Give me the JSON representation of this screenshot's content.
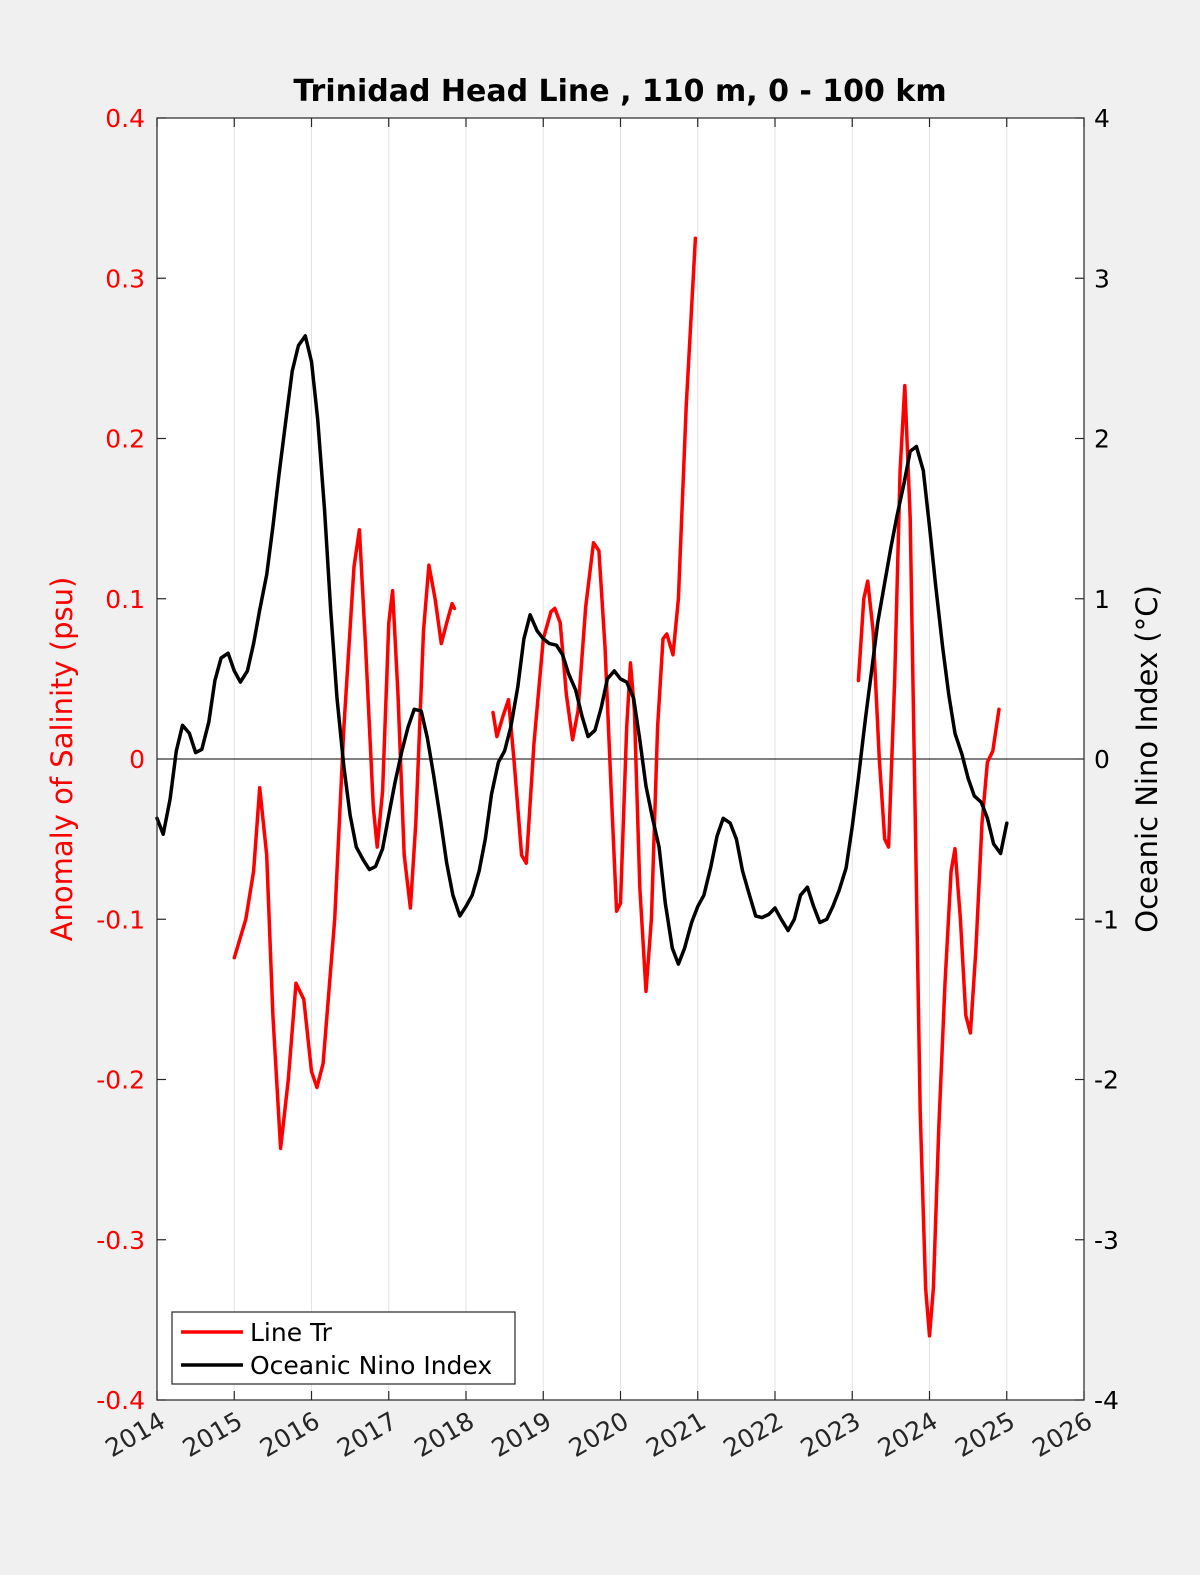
{
  "chart_data": {
    "type": "line",
    "title": "Trinidad Head Line , 110 m, 0 - 100 km",
    "xlabel": "",
    "ylabel_left": "Anomaly of Salinity (psu)",
    "ylabel_right": "Oceanic Nino Index (°C)",
    "xlim": [
      2014,
      2026
    ],
    "ylim_left": [
      -0.4,
      0.4
    ],
    "ylim_right": [
      -4,
      4
    ],
    "x_ticks": [
      "2014",
      "2015",
      "2016",
      "2017",
      "2018",
      "2019",
      "2020",
      "2021",
      "2022",
      "2023",
      "2024",
      "2025",
      "2026"
    ],
    "y_left_ticks": [
      "-0.4",
      "-0.3",
      "-0.2",
      "-0.1",
      "0",
      "0.1",
      "0.2",
      "0.3",
      "0.4"
    ],
    "y_right_ticks": [
      "-4",
      "-3",
      "-2",
      "-1",
      "0",
      "1",
      "2",
      "3",
      "4"
    ],
    "grid": "vertical",
    "legend_position": "bottom-left",
    "colors": {
      "salinity": "#ff0000",
      "oni": "#000000",
      "zero_line": "#000000",
      "grid": "#e3e3e3"
    },
    "series": [
      {
        "name": "Line Tr",
        "axis": "left",
        "segments": [
          [
            [
              2015.0,
              -0.124
            ],
            [
              2015.15,
              -0.1
            ],
            [
              2015.25,
              -0.07
            ],
            [
              2015.33,
              -0.018
            ],
            [
              2015.42,
              -0.06
            ],
            [
              2015.5,
              -0.16
            ],
            [
              2015.6,
              -0.243
            ],
            [
              2015.7,
              -0.2
            ],
            [
              2015.8,
              -0.14
            ],
            [
              2015.9,
              -0.15
            ],
            [
              2016.0,
              -0.195
            ],
            [
              2016.07,
              -0.205
            ],
            [
              2016.15,
              -0.19
            ],
            [
              2016.3,
              -0.1
            ],
            [
              2016.42,
              0.02
            ],
            [
              2016.55,
              0.12
            ],
            [
              2016.62,
              0.143
            ],
            [
              2016.7,
              0.07
            ],
            [
              2016.8,
              -0.03
            ],
            [
              2016.85,
              -0.055
            ],
            [
              2016.92,
              -0.02
            ],
            [
              2017.0,
              0.085
            ],
            [
              2017.05,
              0.105
            ],
            [
              2017.12,
              0.04
            ],
            [
              2017.2,
              -0.06
            ],
            [
              2017.28,
              -0.093
            ],
            [
              2017.35,
              -0.04
            ],
            [
              2017.45,
              0.08
            ],
            [
              2017.52,
              0.121
            ],
            [
              2017.6,
              0.1
            ],
            [
              2017.68,
              0.072
            ],
            [
              2017.75,
              0.085
            ],
            [
              2017.82,
              0.097
            ],
            [
              2017.85,
              0.094
            ]
          ],
          [
            [
              2018.35,
              0.029
            ],
            [
              2018.4,
              0.014
            ],
            [
              2018.48,
              0.027
            ],
            [
              2018.55,
              0.037
            ],
            [
              2018.62,
              0.0
            ],
            [
              2018.72,
              -0.06
            ],
            [
              2018.78,
              -0.065
            ],
            [
              2018.88,
              0.01
            ],
            [
              2019.0,
              0.075
            ],
            [
              2019.1,
              0.092
            ],
            [
              2019.15,
              0.094
            ],
            [
              2019.22,
              0.085
            ],
            [
              2019.3,
              0.04
            ],
            [
              2019.38,
              0.012
            ],
            [
              2019.45,
              0.03
            ],
            [
              2019.55,
              0.095
            ],
            [
              2019.65,
              0.135
            ],
            [
              2019.72,
              0.13
            ],
            [
              2019.8,
              0.07
            ],
            [
              2019.88,
              -0.02
            ],
            [
              2019.95,
              -0.095
            ],
            [
              2020.0,
              -0.09
            ],
            [
              2020.08,
              0.02
            ],
            [
              2020.13,
              0.06
            ],
            [
              2020.18,
              0.03
            ],
            [
              2020.25,
              -0.08
            ],
            [
              2020.33,
              -0.145
            ],
            [
              2020.4,
              -0.1
            ],
            [
              2020.48,
              0.02
            ],
            [
              2020.55,
              0.075
            ],
            [
              2020.6,
              0.078
            ],
            [
              2020.68,
              0.065
            ],
            [
              2020.75,
              0.1
            ],
            [
              2020.85,
              0.22
            ],
            [
              2020.97,
              0.325
            ]
          ],
          [
            [
              2023.08,
              0.049
            ],
            [
              2023.15,
              0.1
            ],
            [
              2023.2,
              0.111
            ],
            [
              2023.27,
              0.08
            ],
            [
              2023.35,
              0.0
            ],
            [
              2023.42,
              -0.05
            ],
            [
              2023.47,
              -0.055
            ],
            [
              2023.55,
              0.05
            ],
            [
              2023.62,
              0.18
            ],
            [
              2023.68,
              0.233
            ],
            [
              2023.75,
              0.15
            ],
            [
              2023.82,
              -0.05
            ],
            [
              2023.88,
              -0.22
            ],
            [
              2023.95,
              -0.33
            ],
            [
              2024.0,
              -0.36
            ],
            [
              2024.05,
              -0.33
            ],
            [
              2024.12,
              -0.23
            ],
            [
              2024.2,
              -0.14
            ],
            [
              2024.28,
              -0.07
            ],
            [
              2024.33,
              -0.056
            ],
            [
              2024.4,
              -0.1
            ],
            [
              2024.47,
              -0.16
            ],
            [
              2024.53,
              -0.171
            ],
            [
              2024.6,
              -0.12
            ],
            [
              2024.68,
              -0.04
            ],
            [
              2024.75,
              -0.002
            ],
            [
              2024.82,
              0.005
            ],
            [
              2024.9,
              0.031
            ]
          ]
        ]
      },
      {
        "name": "Oceanic Nino Index",
        "axis": "right",
        "segments": [
          [
            [
              2014.0,
              -0.37
            ],
            [
              2014.08,
              -0.47
            ],
            [
              2014.17,
              -0.25
            ],
            [
              2014.25,
              0.05
            ],
            [
              2014.33,
              0.21
            ],
            [
              2014.42,
              0.16
            ],
            [
              2014.5,
              0.04
            ],
            [
              2014.58,
              0.06
            ],
            [
              2014.67,
              0.23
            ],
            [
              2014.75,
              0.49
            ],
            [
              2014.83,
              0.63
            ],
            [
              2014.92,
              0.66
            ],
            [
              2015.0,
              0.55
            ],
            [
              2015.08,
              0.48
            ],
            [
              2015.17,
              0.55
            ],
            [
              2015.25,
              0.72
            ],
            [
              2015.33,
              0.93
            ],
            [
              2015.42,
              1.15
            ],
            [
              2015.5,
              1.45
            ],
            [
              2015.58,
              1.78
            ],
            [
              2015.67,
              2.12
            ],
            [
              2015.75,
              2.42
            ],
            [
              2015.83,
              2.58
            ],
            [
              2015.92,
              2.64
            ],
            [
              2016.0,
              2.48
            ],
            [
              2016.08,
              2.12
            ],
            [
              2016.17,
              1.55
            ],
            [
              2016.25,
              0.92
            ],
            [
              2016.33,
              0.38
            ],
            [
              2016.42,
              -0.05
            ],
            [
              2016.5,
              -0.35
            ],
            [
              2016.58,
              -0.55
            ],
            [
              2016.67,
              -0.63
            ],
            [
              2016.75,
              -0.69
            ],
            [
              2016.83,
              -0.67
            ],
            [
              2016.92,
              -0.56
            ],
            [
              2017.0,
              -0.35
            ],
            [
              2017.08,
              -0.15
            ],
            [
              2017.17,
              0.05
            ],
            [
              2017.25,
              0.2
            ],
            [
              2017.33,
              0.31
            ],
            [
              2017.42,
              0.3
            ],
            [
              2017.5,
              0.13
            ],
            [
              2017.58,
              -0.1
            ],
            [
              2017.67,
              -0.38
            ],
            [
              2017.75,
              -0.65
            ],
            [
              2017.83,
              -0.85
            ],
            [
              2017.92,
              -0.98
            ],
            [
              2018.0,
              -0.92
            ],
            [
              2018.08,
              -0.85
            ],
            [
              2018.17,
              -0.7
            ],
            [
              2018.25,
              -0.5
            ],
            [
              2018.33,
              -0.22
            ],
            [
              2018.42,
              -0.02
            ],
            [
              2018.5,
              0.05
            ],
            [
              2018.58,
              0.2
            ],
            [
              2018.67,
              0.45
            ],
            [
              2018.75,
              0.75
            ],
            [
              2018.83,
              0.9
            ],
            [
              2018.92,
              0.8
            ],
            [
              2019.0,
              0.75
            ],
            [
              2019.08,
              0.72
            ],
            [
              2019.17,
              0.71
            ],
            [
              2019.25,
              0.65
            ],
            [
              2019.33,
              0.53
            ],
            [
              2019.42,
              0.43
            ],
            [
              2019.5,
              0.27
            ],
            [
              2019.58,
              0.14
            ],
            [
              2019.67,
              0.18
            ],
            [
              2019.75,
              0.32
            ],
            [
              2019.83,
              0.5
            ],
            [
              2019.92,
              0.55
            ],
            [
              2020.0,
              0.5
            ],
            [
              2020.08,
              0.48
            ],
            [
              2020.17,
              0.38
            ],
            [
              2020.25,
              0.12
            ],
            [
              2020.33,
              -0.17
            ],
            [
              2020.42,
              -0.38
            ],
            [
              2020.5,
              -0.55
            ],
            [
              2020.58,
              -0.9
            ],
            [
              2020.67,
              -1.18
            ],
            [
              2020.75,
              -1.28
            ],
            [
              2020.83,
              -1.18
            ],
            [
              2020.92,
              -1.02
            ],
            [
              2021.0,
              -0.92
            ],
            [
              2021.08,
              -0.85
            ],
            [
              2021.17,
              -0.67
            ],
            [
              2021.25,
              -0.48
            ],
            [
              2021.33,
              -0.37
            ],
            [
              2021.42,
              -0.4
            ],
            [
              2021.5,
              -0.5
            ],
            [
              2021.58,
              -0.7
            ],
            [
              2021.67,
              -0.85
            ],
            [
              2021.75,
              -0.98
            ],
            [
              2021.83,
              -0.99
            ],
            [
              2021.92,
              -0.97
            ],
            [
              2022.0,
              -0.93
            ],
            [
              2022.08,
              -1.0
            ],
            [
              2022.17,
              -1.07
            ],
            [
              2022.25,
              -1.0
            ],
            [
              2022.33,
              -0.85
            ],
            [
              2022.42,
              -0.8
            ],
            [
              2022.5,
              -0.92
            ],
            [
              2022.58,
              -1.02
            ],
            [
              2022.67,
              -1.0
            ],
            [
              2022.75,
              -0.92
            ],
            [
              2022.83,
              -0.82
            ],
            [
              2022.92,
              -0.68
            ],
            [
              2023.0,
              -0.42
            ],
            [
              2023.08,
              -0.12
            ],
            [
              2023.17,
              0.25
            ],
            [
              2023.25,
              0.55
            ],
            [
              2023.33,
              0.85
            ],
            [
              2023.42,
              1.1
            ],
            [
              2023.5,
              1.32
            ],
            [
              2023.58,
              1.52
            ],
            [
              2023.67,
              1.72
            ],
            [
              2023.75,
              1.92
            ],
            [
              2023.83,
              1.95
            ],
            [
              2023.92,
              1.8
            ],
            [
              2024.0,
              1.45
            ],
            [
              2024.08,
              1.08
            ],
            [
              2024.17,
              0.7
            ],
            [
              2024.25,
              0.4
            ],
            [
              2024.33,
              0.16
            ],
            [
              2024.42,
              0.03
            ],
            [
              2024.5,
              -0.12
            ],
            [
              2024.58,
              -0.23
            ],
            [
              2024.67,
              -0.27
            ],
            [
              2024.75,
              -0.37
            ],
            [
              2024.83,
              -0.53
            ],
            [
              2024.92,
              -0.59
            ],
            [
              2025.0,
              -0.4
            ]
          ]
        ]
      }
    ]
  }
}
